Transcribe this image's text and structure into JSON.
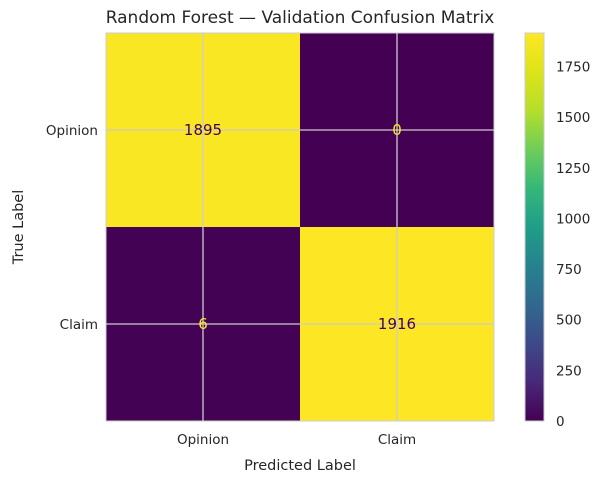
{
  "chart_data": {
    "type": "heatmap",
    "title": "Random Forest — Validation Confusion Matrix",
    "xlabel": "Predicted Label",
    "ylabel": "True Label",
    "x_categories": [
      "Opinion",
      "Claim"
    ],
    "y_categories": [
      "Opinion",
      "Claim"
    ],
    "matrix": [
      [
        1895,
        0
      ],
      [
        6,
        1916
      ]
    ],
    "colormap": "viridis",
    "colorbar_range": [
      0,
      1916
    ],
    "colorbar_ticks": [
      0,
      250,
      500,
      750,
      1000,
      1250,
      1500,
      1750
    ],
    "grid": true
  }
}
